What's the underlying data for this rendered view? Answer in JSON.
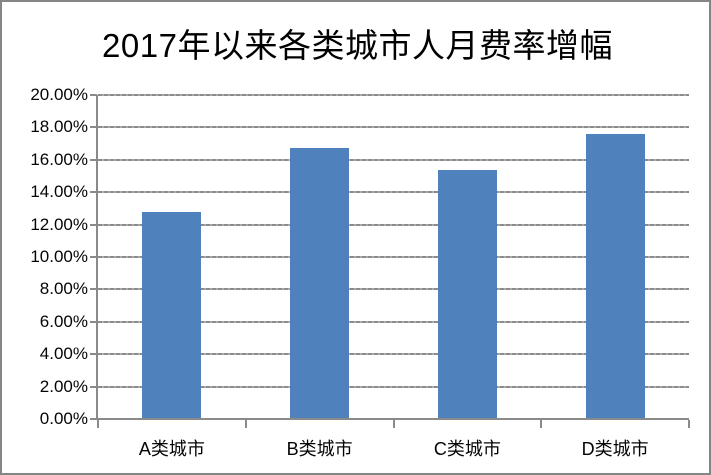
{
  "chart_data": {
    "type": "bar",
    "title": "2017年以来各类城市人月费率增幅",
    "categories": [
      "A类城市",
      "B类城市",
      "C类城市",
      "D类城市"
    ],
    "values": [
      12.8,
      16.7,
      15.4,
      17.6
    ],
    "value_unit": "%",
    "xlabel": "",
    "ylabel": "",
    "ylim": [
      0,
      20
    ],
    "y_ticks": [
      "0.00%",
      "2.00%",
      "4.00%",
      "6.00%",
      "8.00%",
      "10.00%",
      "12.00%",
      "14.00%",
      "16.00%",
      "18.00%",
      "20.00%"
    ],
    "grid": "horizontal",
    "legend": "none",
    "bar_color": "#4F81BD"
  }
}
